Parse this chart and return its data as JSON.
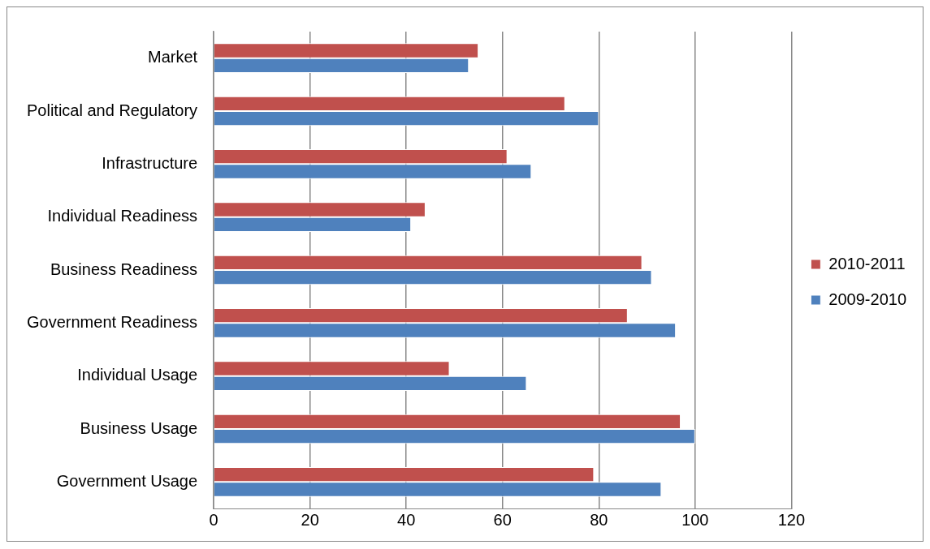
{
  "chart_data": {
    "type": "bar",
    "orientation": "horizontal",
    "categories": [
      "Market",
      "Political and Regulatory",
      "Infrastructure",
      "Individual Readiness",
      "Business Readiness",
      "Government Readiness",
      "Individual Usage",
      "Business Usage",
      "Government Usage"
    ],
    "series": [
      {
        "name": "2010-2011",
        "color": "#c0504d",
        "values": [
          55,
          73,
          61,
          44,
          89,
          86,
          49,
          97,
          79
        ]
      },
      {
        "name": "2009-2010",
        "color": "#4f81bd",
        "values": [
          53,
          80,
          66,
          41,
          91,
          96,
          65,
          100,
          93
        ]
      }
    ],
    "xlim": [
      0,
      120
    ],
    "xticks": [
      0,
      20,
      40,
      60,
      80,
      100,
      120
    ],
    "grid": "x",
    "legend": "right"
  }
}
